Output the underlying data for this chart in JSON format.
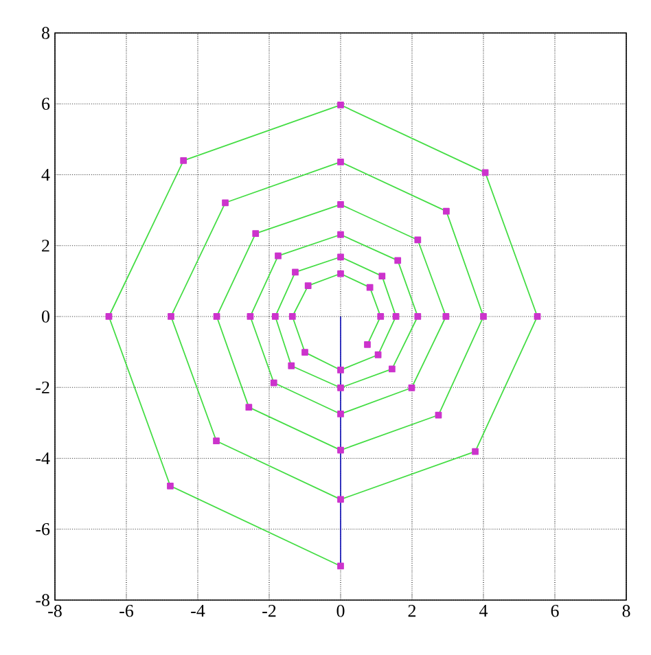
{
  "chart_data": {
    "type": "line",
    "xlim": [
      -8,
      8
    ],
    "ylim": [
      -8,
      8
    ],
    "xticks": [
      -8,
      -6,
      -4,
      -2,
      0,
      2,
      4,
      6,
      8
    ],
    "yticks": [
      -8,
      -6,
      -4,
      -2,
      0,
      2,
      4,
      6,
      8
    ],
    "grid": true,
    "marker": "square",
    "line_style": "solid",
    "series": [
      {
        "color": "#44dd44",
        "x": [
          0.75,
          1.12,
          0.82,
          0,
          -0.91,
          -1.35,
          -1.0,
          0,
          1.05,
          1.55,
          1.16,
          0,
          -1.27,
          -1.83,
          -1.38,
          0,
          1.44,
          2.16,
          1.6,
          0,
          -1.75,
          -2.53,
          -1.87,
          0,
          1.99,
          2.95,
          2.16,
          0,
          -2.38,
          -3.47,
          -2.57,
          0,
          2.74,
          4.0,
          2.96,
          0,
          -3.23,
          -4.75,
          -3.48,
          0,
          3.77,
          5.51,
          4.05,
          0,
          -4.4,
          -6.49,
          -4.77,
          0
        ],
        "values": [
          -0.79,
          0,
          0.82,
          1.21,
          0.87,
          0,
          -1.01,
          -1.51,
          -1.08,
          0,
          1.14,
          1.68,
          1.25,
          0,
          -1.39,
          -2.01,
          -1.48,
          0,
          1.58,
          2.31,
          1.71,
          0,
          -1.87,
          -2.75,
          -2.01,
          0,
          2.16,
          3.16,
          2.34,
          0,
          -2.56,
          -3.77,
          -2.78,
          0,
          2.97,
          4.36,
          3.21,
          0,
          -3.51,
          -5.16,
          -3.81,
          0,
          4.06,
          5.97,
          4.4,
          0,
          -4.78,
          -7.04
        ]
      },
      {
        "color": "#2222bb",
        "marker": "none",
        "x": [
          0,
          0
        ],
        "values": [
          0,
          -7.04
        ]
      }
    ]
  }
}
